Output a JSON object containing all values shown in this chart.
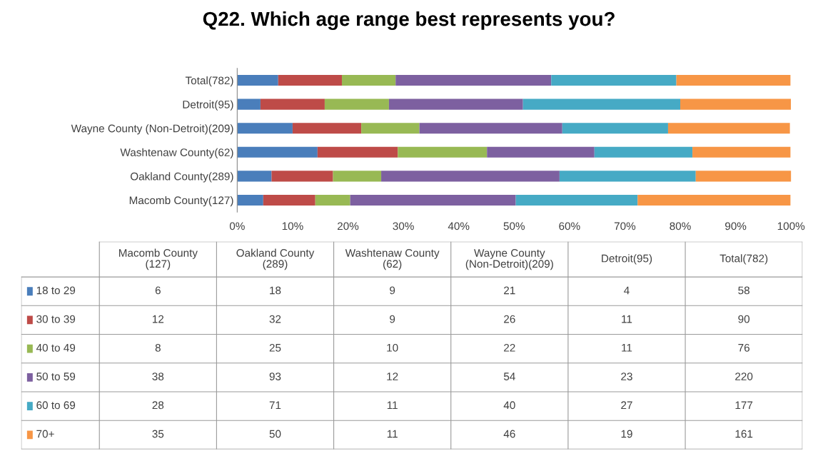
{
  "chart_data": {
    "type": "bar",
    "orientation": "horizontal",
    "stacked": true,
    "title": "Q22. Which age range best represents you?",
    "categories": [
      "Total(782)",
      "Detroit(95)",
      "Wayne County (Non-Detroit)(209)",
      "Washtenaw County(62)",
      "Oakland County(289)",
      "Macomb County(127)"
    ],
    "series": [
      {
        "name": "18 to 29",
        "color": "#4a7ebb",
        "values": [
          7.4,
          4.2,
          10.0,
          14.5,
          6.2,
          4.7
        ]
      },
      {
        "name": "30 to 39",
        "color": "#be4b48",
        "values": [
          11.5,
          11.6,
          12.4,
          14.5,
          11.1,
          9.4
        ]
      },
      {
        "name": "40 to 49",
        "color": "#98b954",
        "values": [
          9.7,
          11.6,
          10.5,
          16.1,
          8.7,
          6.3
        ]
      },
      {
        "name": "50 to 59",
        "color": "#7d60a0",
        "values": [
          28.1,
          24.2,
          25.8,
          19.4,
          32.2,
          29.9
        ]
      },
      {
        "name": "60 to 69",
        "color": "#46aac5",
        "values": [
          22.6,
          28.4,
          19.1,
          17.7,
          24.6,
          22.0
        ]
      },
      {
        "name": "70+",
        "color": "#f79646",
        "values": [
          20.6,
          20.0,
          22.0,
          17.7,
          17.3,
          27.6
        ]
      }
    ],
    "annotations": [
      "6",
      "18",
      "9",
      "21",
      "4",
      "58",
      "12",
      "32",
      "9",
      "26",
      "11",
      "90",
      "8",
      "25",
      "10",
      "22",
      "11",
      "76",
      "38",
      "93",
      "12",
      "54",
      "23",
      "220",
      "28",
      "71",
      "11",
      "40",
      "27",
      "177",
      "35",
      "50",
      "11",
      "46",
      "19",
      "161"
    ],
    "legend": "bottom",
    "xlim": [
      0,
      100
    ],
    "xticks": [
      {
        "value": 0,
        "label": "0%"
      },
      {
        "value": 10,
        "label": "10%"
      },
      {
        "value": 20,
        "label": "20%"
      },
      {
        "value": 30,
        "label": "30%"
      },
      {
        "value": 40,
        "label": "40%"
      },
      {
        "value": 50,
        "label": "50%"
      },
      {
        "value": 60,
        "label": "60%"
      },
      {
        "value": 70,
        "label": "70%"
      },
      {
        "value": 80,
        "label": "80%"
      },
      {
        "value": 90,
        "label": "90%"
      },
      {
        "value": 100,
        "label": "100%"
      }
    ],
    "grid": false
  }
}
